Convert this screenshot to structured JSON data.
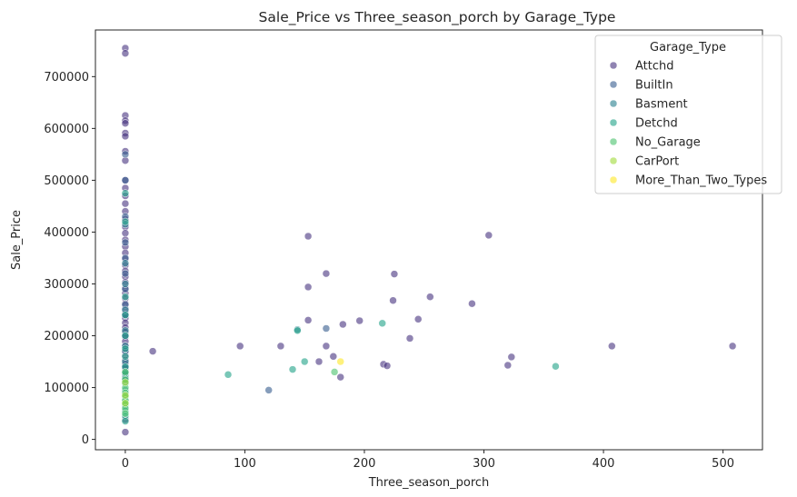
{
  "chart_data": {
    "type": "scatter",
    "title": "Sale_Price vs Three_season_porch by Garage_Type",
    "xlabel": "Three_season_porch",
    "ylabel": "Sale_Price",
    "xlim": [
      -25,
      533
    ],
    "ylim": [
      -20000,
      790000
    ],
    "xticks": [
      0,
      100,
      200,
      300,
      400,
      500
    ],
    "yticks": [
      0,
      100000,
      200000,
      300000,
      400000,
      500000,
      600000,
      700000
    ],
    "grid": false,
    "legend": {
      "title": "Garage_Type",
      "position": "top-right"
    },
    "series": [
      {
        "name": "Attchd",
        "color": "#46327e",
        "points": [
          [
            0,
            755000
          ],
          [
            0,
            745000
          ],
          [
            0,
            625000
          ],
          [
            0,
            615000
          ],
          [
            0,
            610000
          ],
          [
            0,
            591000
          ],
          [
            0,
            585000
          ],
          [
            0,
            556000
          ],
          [
            0,
            538000
          ],
          [
            0,
            500000
          ],
          [
            0,
            485000
          ],
          [
            0,
            470000
          ],
          [
            0,
            455000
          ],
          [
            0,
            440000
          ],
          [
            0,
            425000
          ],
          [
            0,
            410000
          ],
          [
            0,
            398000
          ],
          [
            0,
            385000
          ],
          [
            0,
            372000
          ],
          [
            0,
            360000
          ],
          [
            0,
            348000
          ],
          [
            0,
            336000
          ],
          [
            0,
            325000
          ],
          [
            0,
            314000
          ],
          [
            0,
            303000
          ],
          [
            0,
            292000
          ],
          [
            0,
            282000
          ],
          [
            0,
            272000
          ],
          [
            0,
            262000
          ],
          [
            0,
            252000
          ],
          [
            0,
            243000
          ],
          [
            0,
            234000
          ],
          [
            0,
            225000
          ],
          [
            0,
            216000
          ],
          [
            0,
            207000
          ],
          [
            0,
            198000
          ],
          [
            0,
            189000
          ],
          [
            0,
            180000
          ],
          [
            0,
            171000
          ],
          [
            0,
            162000
          ],
          [
            0,
            153000
          ],
          [
            0,
            145000
          ],
          [
            0,
            137000
          ],
          [
            0,
            129000
          ],
          [
            0,
            121000
          ],
          [
            0,
            113000
          ],
          [
            0,
            38000
          ],
          [
            0,
            14000
          ],
          [
            23,
            170000
          ],
          [
            96,
            180000
          ],
          [
            130,
            180000
          ],
          [
            153,
            392000
          ],
          [
            153,
            294000
          ],
          [
            153,
            230000
          ],
          [
            162,
            150000
          ],
          [
            168,
            320000
          ],
          [
            168,
            180000
          ],
          [
            174,
            160000
          ],
          [
            180,
            120000
          ],
          [
            182,
            222000
          ],
          [
            196,
            229000
          ],
          [
            216,
            145000
          ],
          [
            219,
            142000
          ],
          [
            224,
            268000
          ],
          [
            225,
            319000
          ],
          [
            238,
            195000
          ],
          [
            245,
            232000
          ],
          [
            255,
            275000
          ],
          [
            290,
            262000
          ],
          [
            304,
            394000
          ],
          [
            320,
            143000
          ],
          [
            323,
            159000
          ],
          [
            407,
            180000
          ],
          [
            508,
            180000
          ]
        ]
      },
      {
        "name": "BuiltIn",
        "color": "#365c8d",
        "points": [
          [
            0,
            550000
          ],
          [
            0,
            500000
          ],
          [
            0,
            430000
          ],
          [
            0,
            380000
          ],
          [
            0,
            350000
          ],
          [
            0,
            320000
          ],
          [
            0,
            290000
          ],
          [
            0,
            260000
          ],
          [
            0,
            240000
          ],
          [
            0,
            200000
          ],
          [
            0,
            170000
          ],
          [
            0,
            140000
          ],
          [
            120,
            95000
          ],
          [
            168,
            214000
          ]
        ]
      },
      {
        "name": "Basment",
        "color": "#277f8e",
        "points": [
          [
            0,
            415000
          ],
          [
            0,
            340000
          ],
          [
            0,
            300000
          ],
          [
            0,
            250000
          ],
          [
            0,
            210000
          ],
          [
            0,
            180000
          ],
          [
            0,
            150000
          ],
          [
            0,
            125000
          ],
          [
            144,
            212000
          ]
        ]
      },
      {
        "name": "Detchd",
        "color": "#1fa187",
        "points": [
          [
            0,
            475000
          ],
          [
            0,
            420000
          ],
          [
            0,
            275000
          ],
          [
            0,
            240000
          ],
          [
            0,
            200000
          ],
          [
            0,
            175000
          ],
          [
            0,
            160000
          ],
          [
            0,
            140000
          ],
          [
            0,
            128000
          ],
          [
            0,
            118000
          ],
          [
            0,
            108000
          ],
          [
            0,
            95000
          ],
          [
            0,
            85000
          ],
          [
            0,
            75000
          ],
          [
            0,
            65000
          ],
          [
            0,
            55000
          ],
          [
            0,
            45000
          ],
          [
            0,
            35000
          ],
          [
            86,
            125000
          ],
          [
            140,
            135000
          ],
          [
            144,
            210000
          ],
          [
            150,
            150000
          ],
          [
            215,
            224000
          ],
          [
            360,
            141000
          ]
        ]
      },
      {
        "name": "No_Garage",
        "color": "#4ac16d",
        "points": [
          [
            0,
            130000
          ],
          [
            0,
            115000
          ],
          [
            0,
            100000
          ],
          [
            0,
            90000
          ],
          [
            0,
            82000
          ],
          [
            0,
            75000
          ],
          [
            0,
            68000
          ],
          [
            0,
            60000
          ],
          [
            0,
            50000
          ],
          [
            175,
            130000
          ]
        ]
      },
      {
        "name": "CarPort",
        "color": "#a0da39",
        "points": [
          [
            0,
            110000
          ],
          [
            0,
            85000
          ],
          [
            0,
            70000
          ]
        ]
      },
      {
        "name": "More_Than_Two_Types",
        "color": "#fde725",
        "points": [
          [
            180,
            150000
          ]
        ]
      }
    ]
  }
}
